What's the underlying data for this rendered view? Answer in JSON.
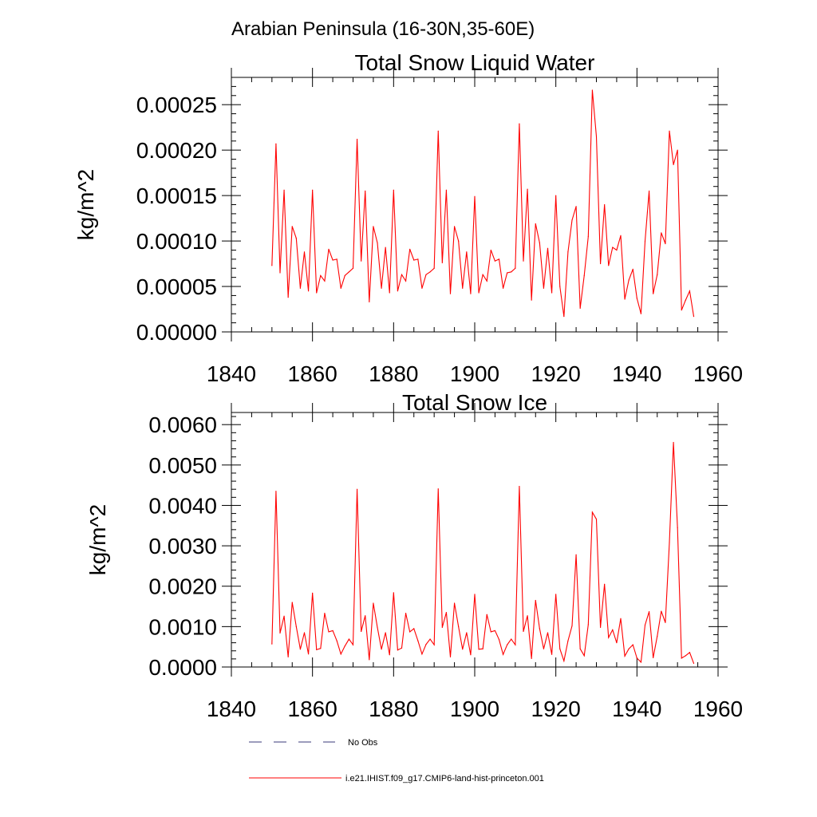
{
  "page_title": "Arabian Peninsula (16-30N,35-60E)",
  "series_color": "#ff0000",
  "legend": {
    "items": [
      {
        "label": "No Obs",
        "style": "dashed",
        "color": "#3a3a7a"
      },
      {
        "label": "i.e21.IHIST.f09_g17.CMIP6-land-hist-princeton.001",
        "style": "solid",
        "color": "#ff0000"
      }
    ]
  },
  "chart_data": [
    {
      "type": "line",
      "title": "Total Snow Liquid Water",
      "xlabel": "",
      "ylabel": "kg/m^2",
      "xlim": [
        1840,
        1960
      ],
      "ylim": [
        0,
        0.00028
      ],
      "x_ticks": [
        1840,
        1860,
        1880,
        1900,
        1920,
        1940,
        1960
      ],
      "x_tick_labels": [
        "1840",
        "1860",
        "1880",
        "1900",
        "1920",
        "1940",
        "1960"
      ],
      "y_ticks": [
        0,
        5e-05,
        0.0001,
        0.00015,
        0.0002,
        0.00025
      ],
      "y_tick_labels": [
        "0.00000",
        "0.00005",
        "0.00010",
        "0.00015",
        "0.00020",
        "0.00025"
      ],
      "grid": false,
      "series": [
        {
          "x_start": 1850,
          "x_step": 1,
          "values": [
            7.3e-05,
            0.000207,
            6.5e-05,
            0.000156,
            3.8e-05,
            0.000116,
            0.000103,
            4.8e-05,
            8.8e-05,
            4.5e-05,
            0.000156,
            4.3e-05,
            6.2e-05,
            5.6e-05,
            9.1e-05,
            7.9e-05,
            8e-05,
            4.8e-05,
            6.2e-05,
            6.6e-05,
            7e-05,
            0.000212,
            7.8e-05,
            0.000155,
            3.3e-05,
            0.000116,
            9.8e-05,
            4.8e-05,
            9.3e-05,
            4.3e-05,
            0.000156,
            4.5e-05,
            6.3e-05,
            5.6e-05,
            9.1e-05,
            7.9e-05,
            8e-05,
            4.8e-05,
            6.3e-05,
            6.6e-05,
            7e-05,
            0.000221,
            7.6e-05,
            0.000156,
            4.2e-05,
            0.000116,
            0.0001,
            4.8e-05,
            8.8e-05,
            4.2e-05,
            0.000149,
            4.3e-05,
            6.3e-05,
            5.6e-05,
            9e-05,
            7.8e-05,
            8e-05,
            4.8e-05,
            6.5e-05,
            6.6e-05,
            7e-05,
            0.000229,
            7.8e-05,
            0.000157,
            3.5e-05,
            0.000119,
            9.8e-05,
            4.8e-05,
            9.2e-05,
            4.3e-05,
            0.00015,
            5e-05,
            1.7e-05,
            8.8e-05,
            0.000123,
            0.000138,
            2.6e-05,
            6.2e-05,
            0.000105,
            0.000266,
            0.000215,
            7.5e-05,
            0.00014,
            7.3e-05,
            9.3e-05,
            9e-05,
            0.000106,
            3.6e-05,
            5.7e-05,
            6.9e-05,
            3.7e-05,
            2e-05,
            0.0001,
            0.000155,
            4.2e-05,
            6.3e-05,
            0.000109,
            9.7e-05,
            0.000221,
            0.000184,
            0.0002,
            2.4e-05,
            3.5e-05,
            4.5e-05,
            1.7e-05
          ]
        }
      ]
    },
    {
      "type": "line",
      "title": "Total Snow Ice",
      "xlabel": "",
      "ylabel": "kg/m^2",
      "xlim": [
        1840,
        1960
      ],
      "ylim": [
        0,
        0.0063
      ],
      "x_ticks": [
        1840,
        1860,
        1880,
        1900,
        1920,
        1940,
        1960
      ],
      "x_tick_labels": [
        "1840",
        "1860",
        "1880",
        "1900",
        "1920",
        "1940",
        "1960"
      ],
      "y_ticks": [
        0,
        0.001,
        0.002,
        0.003,
        0.004,
        0.005,
        0.006
      ],
      "y_tick_labels": [
        "0.0000",
        "0.0010",
        "0.0020",
        "0.0030",
        "0.0040",
        "0.0050",
        "0.0060"
      ],
      "grid": false,
      "series": [
        {
          "x_start": 1850,
          "x_step": 1,
          "values": [
            0.00057,
            0.00435,
            0.00084,
            0.00126,
            0.00025,
            0.0016,
            0.001,
            0.00044,
            0.00085,
            0.00032,
            0.00183,
            0.00043,
            0.00046,
            0.00133,
            0.00087,
            0.0009,
            0.00065,
            0.00032,
            0.00052,
            0.00069,
            0.00055,
            0.0044,
            0.00088,
            0.00127,
            0.00018,
            0.00158,
            0.00098,
            0.00044,
            0.00085,
            0.0003,
            0.00184,
            0.00042,
            0.00047,
            0.00133,
            0.00087,
            0.00095,
            0.00065,
            0.00032,
            0.00056,
            0.00069,
            0.00055,
            0.00441,
            0.00098,
            0.00135,
            0.00025,
            0.00158,
            0.001,
            0.00044,
            0.00085,
            0.0003,
            0.0018,
            0.00044,
            0.00045,
            0.0013,
            0.00087,
            0.0009,
            0.00068,
            0.00031,
            0.00055,
            0.00069,
            0.00055,
            0.00447,
            0.00088,
            0.00127,
            0.00021,
            0.00165,
            0.00095,
            0.00045,
            0.00085,
            0.00031,
            0.0018,
            0.00045,
            0.00015,
            0.00065,
            0.00102,
            0.00278,
            0.00045,
            0.00028,
            0.00105,
            0.00383,
            0.00366,
            0.00098,
            0.00205,
            0.00073,
            0.00092,
            0.0006,
            0.0012,
            0.00027,
            0.00045,
            0.00055,
            0.00022,
            0.00012,
            0.00104,
            0.00137,
            0.00023,
            0.00076,
            0.00138,
            0.0011,
            0.00308,
            0.00556,
            0.00345,
            0.00022,
            0.00028,
            0.00036,
            9e-05
          ]
        }
      ]
    }
  ]
}
